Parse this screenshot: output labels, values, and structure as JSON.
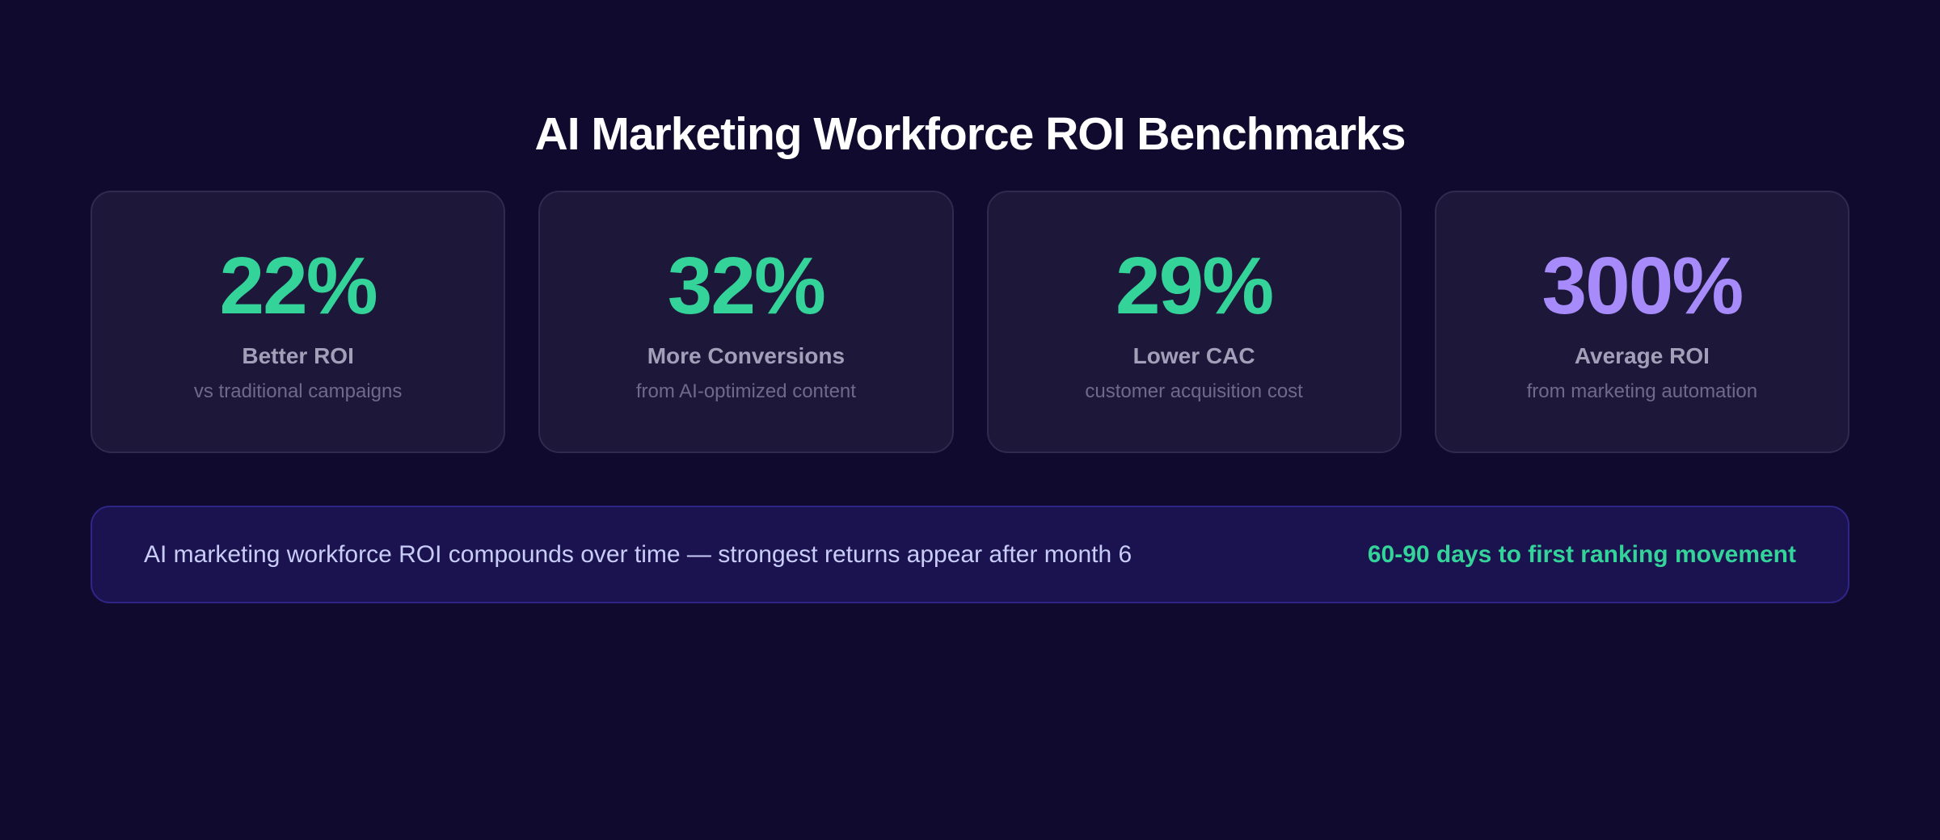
{
  "title": "AI Marketing Workforce ROI Benchmarks",
  "colors": {
    "background": "#100b2e",
    "card_background": "#1d183a",
    "accent_green": "#34d399",
    "accent_purple": "#a78bfa",
    "banner_background": "#1a1350"
  },
  "cards": [
    {
      "value": "22%",
      "label": "Better ROI",
      "sub": "vs traditional campaigns",
      "color": "#34d399"
    },
    {
      "value": "32%",
      "label": "More Conversions",
      "sub": "from AI-optimized content",
      "color": "#34d399"
    },
    {
      "value": "29%",
      "label": "Lower CAC",
      "sub": "customer acquisition cost",
      "color": "#34d399"
    },
    {
      "value": "300%",
      "label": "Average ROI",
      "sub": "from marketing automation",
      "color": "#a78bfa"
    }
  ],
  "banner": {
    "text": "AI marketing workforce ROI compounds over time — strongest returns appear after month 6",
    "highlight": "60-90 days to first ranking movement"
  }
}
